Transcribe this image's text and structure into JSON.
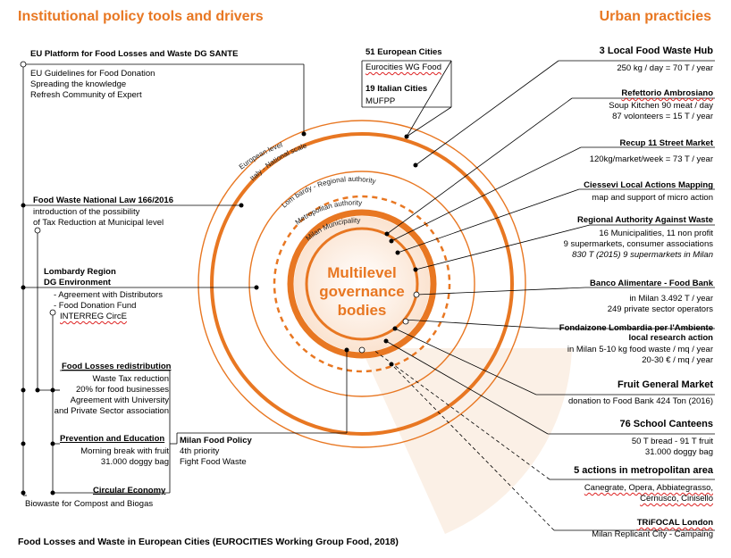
{
  "header": {
    "left_title": "Institutional policy tools and drivers",
    "right_title": "Urban practicies"
  },
  "center": {
    "line1": "Multilevel",
    "line2": "governance",
    "line3": "bodies"
  },
  "rings": {
    "european": "European level",
    "national": "Italy - National scale",
    "regional": "Lom bardy - Regional authority",
    "metropolitan": "Metropolitan authority",
    "municipal": "Milan Municipality"
  },
  "left": {
    "eu_platform": {
      "title": "EU Platform for Food Losses and Waste DG SANTE",
      "lines": [
        "EU Guidelines for Food Donation",
        "Spreading the knowledge",
        "Refresh Community of Expert"
      ]
    },
    "national_law": {
      "title": "Food Waste National Law 166/2016",
      "lines": [
        "introduction of the possibility",
        "of Tax Reduction at Municipal level"
      ]
    },
    "lombardy": {
      "title1": "Lombardy Region",
      "title2": "DG Environment",
      "lines": [
        "- Agreement with Distributors",
        "- Food Donation Fund",
        "INTERREG CircE"
      ]
    },
    "redistribution": {
      "title": "Food Losses redistribution",
      "lines": [
        "Waste Tax reduction",
        "20% for food businesses",
        "Agreement with  University",
        "and Private Sector association"
      ]
    },
    "prevention": {
      "title": "Prevention and Education",
      "lines": [
        "Morning break with fruit",
        "31.000 doggy bag"
      ]
    },
    "milan_policy": {
      "title": "Milan Food Policy",
      "lines": [
        "4th priority",
        "Fight Food Waste"
      ]
    },
    "circular": {
      "title": "Circular Economy",
      "lines": [
        "Biowaste for Compost and Biogas"
      ]
    }
  },
  "networks": {
    "eu_cities": {
      "title": "51 European Cities",
      "line": "Eurocities WG Food"
    },
    "it_cities": {
      "title": "19 Italian Cities",
      "line": "MUFPP"
    }
  },
  "right": [
    {
      "title": "3 Local Food Waste Hub",
      "lines": [
        "250 kg / day = 70 T / year"
      ]
    },
    {
      "title": "Refettorio Ambrosiano",
      "lines": [
        "Soup Kitchen 90 meat / day",
        "87 volonteers = 15 T / year"
      ]
    },
    {
      "title": "Recup 11 Street Market",
      "lines": [
        "120kg/market/week = 73 T / year"
      ]
    },
    {
      "title": "Ciessevi Local Actions Mapping",
      "lines": [
        "map and support of micro action"
      ]
    },
    {
      "title": "Regional Authority Against Waste",
      "lines": [
        "16 Municipalities, 11 non profit",
        "9 supermarkets, consumer associations",
        "830 T (2015) 9 supermarkets in Milan"
      ]
    },
    {
      "title": "Banco Alimentare - Food Bank",
      "lines": [
        "in Milan 3.492 T / year",
        "249 private sector operators"
      ]
    },
    {
      "title": "Fondaizone Lombardia  per l'Ambiente",
      "title2": "local research action",
      "lines": [
        "in Milan 5-10 kg food waste / mq / year",
        "20-30 € / mq / year"
      ]
    },
    {
      "title": "Fruit General Market",
      "lines": [
        "donation to Food Bank 424 Ton (2016)"
      ]
    },
    {
      "title": "76 School Canteens",
      "lines": [
        "50 T bread - 91 T fruit",
        "31.000 doggy bag"
      ]
    },
    {
      "title": "5 actions in metropolitan area",
      "lines": [
        "Canegrate, Opera, Abbiategrasso,",
        "Cernusco, Cinisello"
      ]
    },
    {
      "title": "TRiFOCAL London",
      "lines": [
        "Milan Replicant City - Campaing"
      ]
    }
  ],
  "footer": "Food Losses and Waste in European Cities (EUROCITIES Working Group Food, 2018)",
  "colors": {
    "orange": "#e87722",
    "light_fill": "#fdf0e6"
  }
}
